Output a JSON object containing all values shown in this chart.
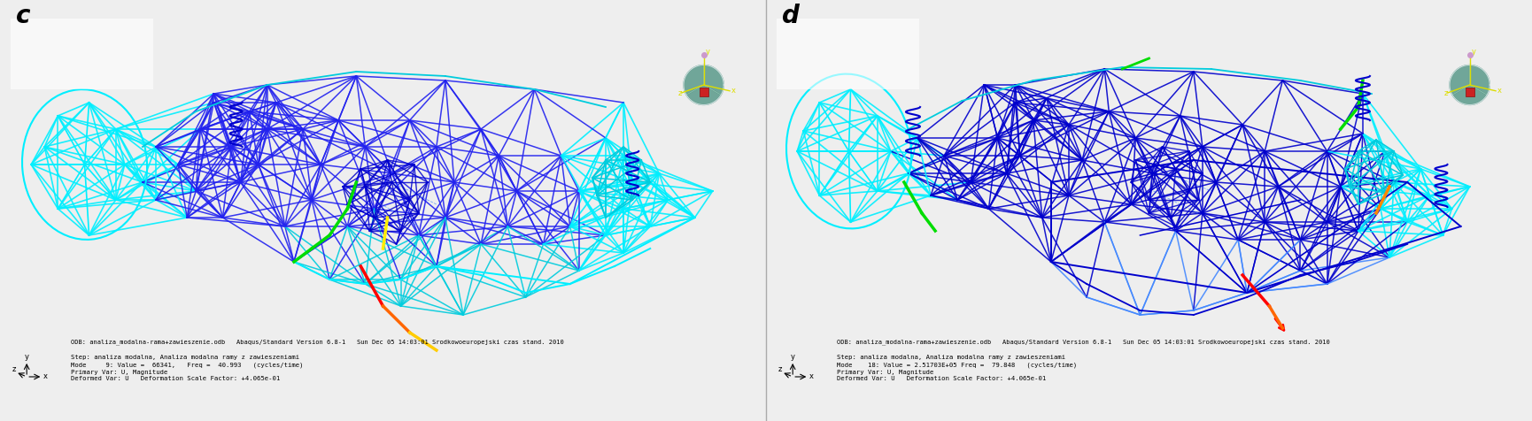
{
  "bg_color": "#eeeeee",
  "label_c": "c",
  "label_d": "d",
  "label_fontsize": 20,
  "odb_text": "ODB: analiza_modalna-rama+zawieszenie.odb   Abaqus/Standard Version 6.8-1   Sun Dec 05 14:03:01 Srodkowoeuropejski czas stand. 2010",
  "info_c": "Step: analiza modalna, Analiza modalna ramy z zawieszeniami\nMode     9: Value =  66341,   Freq =  40.993   (cycles/time)\nPrimary Var: U, Magnitude\nDeformed Var: U   Deformation Scale Factor: +4.065e-01",
  "info_d": "Step: analiza modalna, Analiza modalna ramy z zawieszeniami\nMode    18: Value = 2.51703E+05 Freq =  79.848   (cycles/time)\nPrimary Var: U, Magnitude\nDeformed Var: U   Deformation Scale Factor: +4.065e-01",
  "blue_dark": "#0000cc",
  "blue_med": "#2222ee",
  "blue_light": "#4488ff",
  "cyan_bright": "#00eeff",
  "cyan_mid": "#00ccdd",
  "green_bright": "#00dd00",
  "green_yellow": "#88dd00",
  "yellow": "#ffee00",
  "orange": "#ff8800",
  "red": "#ff0000"
}
